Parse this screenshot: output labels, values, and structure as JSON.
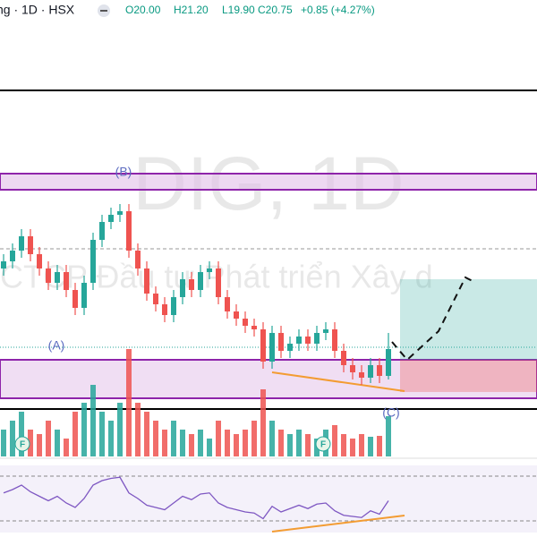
{
  "header": {
    "symbol": "ng · 1D · HSX",
    "open": "O20.00",
    "high": "H21.20",
    "low": "L19.90",
    "close": "C20.75",
    "change": "+0.85 (+4.27%)"
  },
  "watermark": {
    "title": "DIG, 1D",
    "subtitle": "CTCP Đầu tư Phát triển Xây d"
  },
  "annotations": {
    "a": "(A)",
    "b": "(B)",
    "c": "(C)",
    "f1": "F",
    "f2": "F"
  },
  "chart_data": {
    "type": "candlestick",
    "candles": [
      [
        23.0,
        23.4,
        22.8,
        23.2
      ],
      [
        23.2,
        23.7,
        23.0,
        23.5
      ],
      [
        23.5,
        24.1,
        23.3,
        23.9
      ],
      [
        23.9,
        24.1,
        23.2,
        23.4
      ],
      [
        23.4,
        23.6,
        22.8,
        23.0
      ],
      [
        23.0,
        23.2,
        22.4,
        22.6
      ],
      [
        22.6,
        23.1,
        22.4,
        22.9
      ],
      [
        22.9,
        23.1,
        22.2,
        22.4
      ],
      [
        22.4,
        22.6,
        21.7,
        21.9
      ],
      [
        21.9,
        22.8,
        21.7,
        22.6
      ],
      [
        22.6,
        24.0,
        22.4,
        23.8
      ],
      [
        23.8,
        24.5,
        23.6,
        24.3
      ],
      [
        24.3,
        24.7,
        24.1,
        24.5
      ],
      [
        24.5,
        24.8,
        24.3,
        24.6
      ],
      [
        24.6,
        24.8,
        23.3,
        23.5
      ],
      [
        23.5,
        23.7,
        22.8,
        23.0
      ],
      [
        23.0,
        23.2,
        22.1,
        22.3
      ],
      [
        22.3,
        22.5,
        21.8,
        22.0
      ],
      [
        22.0,
        22.2,
        21.5,
        21.7
      ],
      [
        21.7,
        22.4,
        21.5,
        22.2
      ],
      [
        22.2,
        22.9,
        22.0,
        22.7
      ],
      [
        22.7,
        22.9,
        22.2,
        22.4
      ],
      [
        22.4,
        23.1,
        22.2,
        22.9
      ],
      [
        22.9,
        23.2,
        22.7,
        23.0
      ],
      [
        23.0,
        23.2,
        22.0,
        22.2
      ],
      [
        22.2,
        22.4,
        21.6,
        21.8
      ],
      [
        21.8,
        22.0,
        21.4,
        21.6
      ],
      [
        21.6,
        21.8,
        21.2,
        21.4
      ],
      [
        21.4,
        21.6,
        21.1,
        21.3
      ],
      [
        21.3,
        21.5,
        20.2,
        20.4
      ],
      [
        20.4,
        21.4,
        20.2,
        21.2
      ],
      [
        21.2,
        21.4,
        20.5,
        20.7
      ],
      [
        20.7,
        21.1,
        20.5,
        20.9
      ],
      [
        20.9,
        21.3,
        20.7,
        21.1
      ],
      [
        21.1,
        21.3,
        20.7,
        20.9
      ],
      [
        20.9,
        21.4,
        20.7,
        21.2
      ],
      [
        21.2,
        21.5,
        21.0,
        21.3
      ],
      [
        21.3,
        21.5,
        20.5,
        20.7
      ],
      [
        20.7,
        20.9,
        20.1,
        20.3
      ],
      [
        20.3,
        20.5,
        19.9,
        20.1
      ],
      [
        20.1,
        20.3,
        19.75,
        19.95
      ],
      [
        19.95,
        20.5,
        19.8,
        20.3
      ],
      [
        20.3,
        20.5,
        19.8,
        20.0
      ],
      [
        20.0,
        21.2,
        19.9,
        20.75
      ]
    ],
    "volumes": [
      3,
      4,
      5,
      3,
      2.5,
      4,
      3,
      2,
      5,
      6,
      8,
      5,
      4,
      6,
      12,
      6,
      5,
      4,
      3,
      4,
      3,
      2.5,
      3,
      2,
      4,
      3,
      2.5,
      3,
      4,
      7.5,
      4,
      3,
      2.5,
      3,
      2.5,
      2,
      3,
      3.5,
      2.5,
      2,
      2.5,
      2.2,
      2.3,
      4.5
    ],
    "rsi": [
      55,
      58,
      62,
      56,
      52,
      48,
      52,
      46,
      42,
      50,
      62,
      66,
      68,
      69,
      55,
      50,
      44,
      42,
      40,
      46,
      52,
      49,
      54,
      55,
      46,
      42,
      40,
      38,
      37,
      32,
      43,
      38,
      41,
      44,
      41,
      45,
      46,
      39,
      35,
      34,
      33,
      39,
      36,
      48
    ],
    "up_color": "#26a69a",
    "down_color": "#ef5350"
  }
}
